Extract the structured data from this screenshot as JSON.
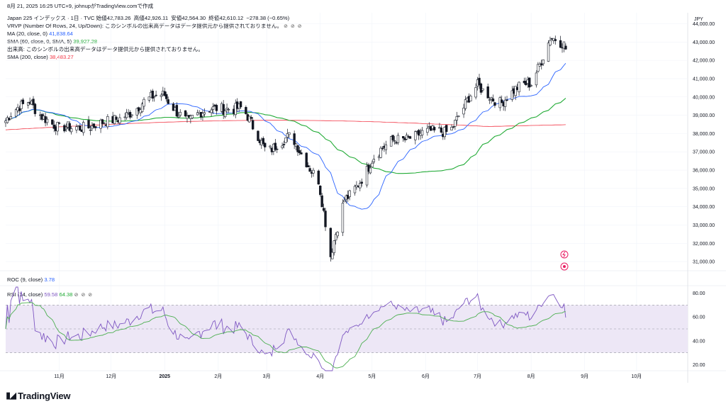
{
  "header": {
    "datetime": "8月 21, 2025 16:25 UTC+9",
    "user": "johnupがTradingView.comで作成",
    "symbol": "Japan 225 インデックス · 1日 · TVC",
    "open_label": "始値",
    "open": "42,783.26",
    "high_label": "高値",
    "high": "42,926.11",
    "low_label": "安値",
    "low": "42,564.30",
    "close_label": "終値",
    "close": "42,610.12",
    "change": "−278.38 (−0.65%)"
  },
  "indicators": {
    "vrvp": "VRVP (Number Of Rows, 24, Up/Down): このシンボルの出来高データはデータ提供元から提供されておりません。",
    "ma20_label": "MA (20, close, 0)",
    "ma20_value": "41,838.64",
    "sma60_label": "SMA (60, close, 0, SMA, 5)",
    "sma60_value": "39,927.28",
    "volume_note": "出来高: このシンボルの出来高データはデータ提供元から提供されておりません。",
    "sma200_label": "SMA (200, close)",
    "sma200_value": "38,483.27",
    "roc_label": "ROC (9, close)",
    "roc_value": "3.78",
    "rsi_label": "RSI (14, close)",
    "rsi_value": "59.58",
    "rsi_ma_value": "64.38",
    "eye_glyphs": "⊘ ⊘ ⊘"
  },
  "currency": "JPY",
  "brand": "TradingView",
  "colors": {
    "up": "#131722",
    "down": "#131722",
    "ma20": "#2962ff",
    "sma60": "#22ab36",
    "sma200": "#f23645",
    "rsi": "#7e57c2",
    "rsi_ma": "#4caf50",
    "rsi_band": "#ede7f6"
  },
  "chart_data": [
    {
      "type": "candlestick",
      "title": "Japan 225 インデックス · 1日 · TVC",
      "y_ticks": [
        "44,000.00",
        "43,000.00",
        "42,000.00",
        "41,000.00",
        "40,000.00",
        "39,000.00",
        "38,000.00",
        "37,000.00",
        "36,000.00",
        "35,000.00",
        "34,000.00",
        "33,000.00",
        "32,000.00",
        "31,000.00"
      ],
      "y_range": [
        30500,
        44600
      ],
      "x_ticks": [
        "11月",
        "12月",
        "2025",
        "2月",
        "3月",
        "4月",
        "5月",
        "6月",
        "7月",
        "8月",
        "9月",
        "10月"
      ],
      "close_anchor": [
        [
          "2024-10-01",
          38700
        ],
        [
          "2024-10-15",
          39800
        ],
        [
          "2024-11-01",
          38100
        ],
        [
          "2024-11-15",
          38500
        ],
        [
          "2024-12-01",
          38500
        ],
        [
          "2024-12-15",
          39500
        ],
        [
          "2025-01-01",
          40100
        ],
        [
          "2025-01-15",
          38600
        ],
        [
          "2025-02-01",
          39600
        ],
        [
          "2025-02-15",
          39200
        ],
        [
          "2025-03-01",
          37200
        ],
        [
          "2025-03-15",
          37700
        ],
        [
          "2025-03-31",
          35600
        ],
        [
          "2025-04-07",
          31200
        ],
        [
          "2025-04-15",
          34300
        ],
        [
          "2025-05-01",
          36500
        ],
        [
          "2025-05-15",
          37800
        ],
        [
          "2025-06-01",
          37900
        ],
        [
          "2025-06-15",
          38300
        ],
        [
          "2025-07-01",
          40500
        ],
        [
          "2025-07-15",
          39800
        ],
        [
          "2025-08-01",
          40800
        ],
        [
          "2025-08-12",
          43300
        ],
        [
          "2025-08-21",
          42610
        ]
      ],
      "series": [
        {
          "name": "MA (20, close, 0)",
          "last": 41838.64
        },
        {
          "name": "SMA (60, close, 0, SMA, 5)",
          "last": 39927.28
        },
        {
          "name": "SMA (200, close)",
          "last": 38483.27
        }
      ]
    },
    {
      "type": "line",
      "title": "RSI (14, close)",
      "y_ticks": [
        "80.00",
        "60.00",
        "40.00",
        "20.00"
      ],
      "y_range": [
        15,
        85
      ],
      "bands": [
        30,
        50,
        70
      ],
      "series": [
        {
          "name": "RSI",
          "last": 59.58
        },
        {
          "name": "RSI MA",
          "last": 64.38
        }
      ]
    }
  ]
}
